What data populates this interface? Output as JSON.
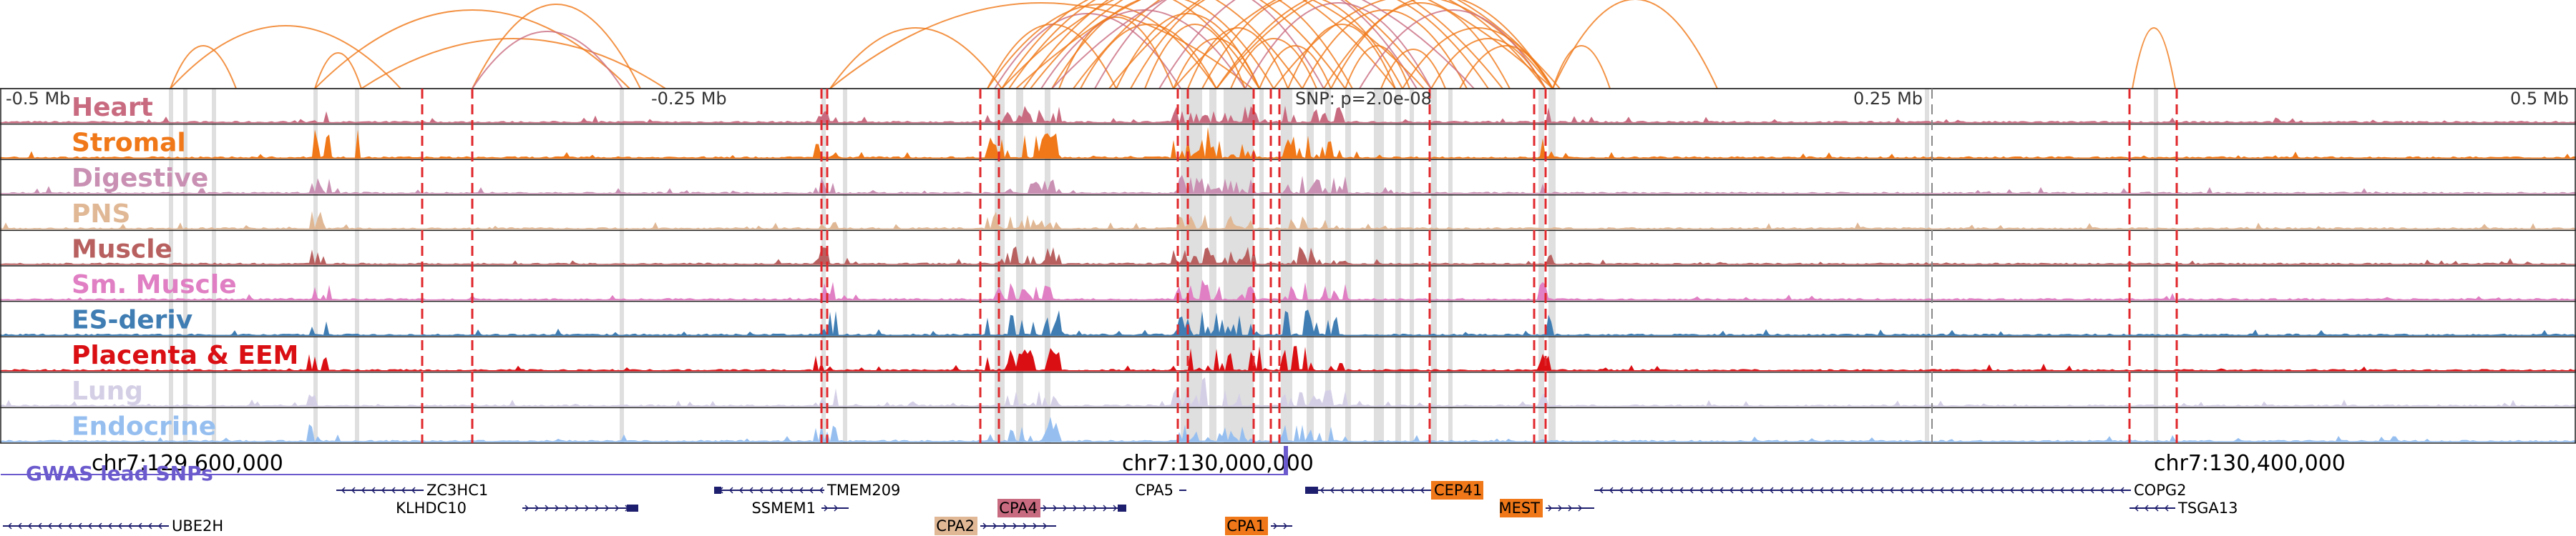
{
  "scale_labels": {
    "left": "-0.5 Mb",
    "left_mid": "-0.25 Mb",
    "snp": "SNP: p=2.0e-08",
    "right_mid": "0.25 Mb",
    "right": "0.5 Mb"
  },
  "tracks": [
    {
      "name": "Heart",
      "color": "#c96b80"
    },
    {
      "name": "Stromal",
      "color": "#f07818"
    },
    {
      "name": "Digestive",
      "color": "#c990b3"
    },
    {
      "name": "PNS",
      "color": "#e0b896"
    },
    {
      "name": "Muscle",
      "color": "#b86060"
    },
    {
      "name": "Sm. Muscle",
      "color": "#e07fc3"
    },
    {
      "name": "ES-deriv",
      "color": "#3f7db3"
    },
    {
      "name": "Placenta & EEM",
      "color": "#d90f14"
    },
    {
      "name": "Lung",
      "color": "#d5cfe6"
    },
    {
      "name": "Endocrine",
      "color": "#96bff0"
    }
  ],
  "coordinates": [
    "chr7:129,600,000",
    "chr7:130,000,000",
    "chr7:130,400,000"
  ],
  "gwas_label": "GWAS lead SNPs",
  "genes": [
    {
      "name": "UBE2H",
      "highlight": false,
      "color": ""
    },
    {
      "name": "ZC3HC1",
      "highlight": false,
      "color": ""
    },
    {
      "name": "KLHDC10",
      "highlight": false,
      "color": ""
    },
    {
      "name": "TMEM209",
      "highlight": false,
      "color": ""
    },
    {
      "name": "SSMEM1",
      "highlight": false,
      "color": ""
    },
    {
      "name": "CPA2",
      "highlight": true,
      "color": "#e0b896"
    },
    {
      "name": "CPA4",
      "highlight": true,
      "color": "#c96b80"
    },
    {
      "name": "CPA5",
      "highlight": false,
      "color": ""
    },
    {
      "name": "CPA1",
      "highlight": true,
      "color": "#f07818"
    },
    {
      "name": "CEP41",
      "highlight": true,
      "color": "#f07818"
    },
    {
      "name": "MEST",
      "highlight": true,
      "color": "#f07818"
    },
    {
      "name": "COPG2",
      "highlight": false,
      "color": ""
    },
    {
      "name": "TSGA13",
      "highlight": false,
      "color": ""
    }
  ],
  "colors": {
    "arc_orange": "#f07818",
    "arc_pink": "#c96b80",
    "boundary_red": "#e0282c",
    "highlight_gray": "#d9d9d9",
    "gwas_purple": "#6a5acd",
    "gene_navy": "#1e1e6e"
  }
}
